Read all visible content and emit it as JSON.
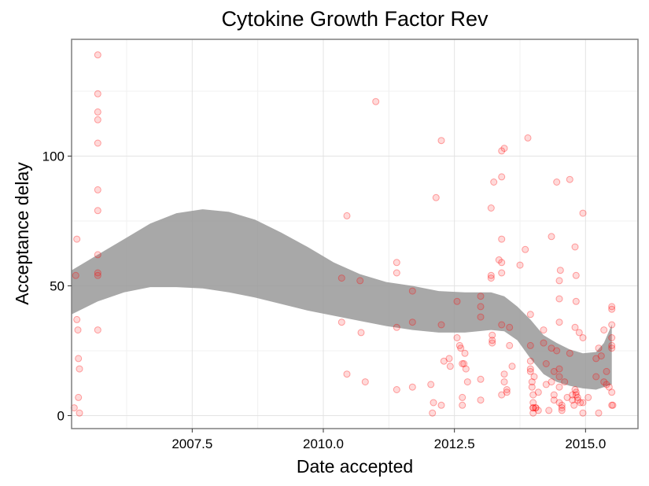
{
  "chart_data": {
    "type": "scatter",
    "title": "Cytokine Growth Factor Rev",
    "xlabel": "Date accepted",
    "ylabel": "Acceptance delay",
    "xlim": [
      2005.2,
      2016.0
    ],
    "ylim": [
      -5,
      145
    ],
    "xticks": [
      2007.5,
      2010.0,
      2012.5,
      2015.0
    ],
    "xtick_labels": [
      "2007.5",
      "2010.0",
      "2012.5",
      "2015.0"
    ],
    "yticks": [
      0,
      50,
      100
    ],
    "ytick_labels": [
      "0",
      "50",
      "100"
    ],
    "grid": true,
    "point_color": "#ff0000",
    "band_color": "#999999",
    "points": [
      [
        2005.25,
        3
      ],
      [
        2005.28,
        54
      ],
      [
        2005.3,
        68
      ],
      [
        2005.3,
        37
      ],
      [
        2005.32,
        33
      ],
      [
        2005.33,
        22
      ],
      [
        2005.33,
        7
      ],
      [
        2005.35,
        1
      ],
      [
        2005.35,
        18
      ],
      [
        2005.7,
        139
      ],
      [
        2005.7,
        124
      ],
      [
        2005.7,
        117
      ],
      [
        2005.7,
        114
      ],
      [
        2005.7,
        105
      ],
      [
        2005.7,
        87
      ],
      [
        2005.7,
        79
      ],
      [
        2005.7,
        62
      ],
      [
        2005.7,
        55
      ],
      [
        2005.7,
        54
      ],
      [
        2005.7,
        33
      ],
      [
        2010.35,
        53
      ],
      [
        2010.35,
        36
      ],
      [
        2010.45,
        77
      ],
      [
        2010.45,
        16
      ],
      [
        2010.7,
        52
      ],
      [
        2010.72,
        32
      ],
      [
        2010.8,
        13
      ],
      [
        2011.0,
        121
      ],
      [
        2011.4,
        59
      ],
      [
        2011.4,
        55
      ],
      [
        2011.4,
        34
      ],
      [
        2011.4,
        10
      ],
      [
        2011.7,
        48
      ],
      [
        2011.7,
        36
      ],
      [
        2011.7,
        11
      ],
      [
        2012.05,
        12
      ],
      [
        2012.08,
        1
      ],
      [
        2012.1,
        5
      ],
      [
        2012.15,
        84
      ],
      [
        2012.25,
        106
      ],
      [
        2012.25,
        35
      ],
      [
        2012.3,
        21
      ],
      [
        2012.25,
        4
      ],
      [
        2012.4,
        22
      ],
      [
        2012.42,
        19
      ],
      [
        2012.55,
        44
      ],
      [
        2012.55,
        30
      ],
      [
        2012.6,
        27
      ],
      [
        2012.62,
        26
      ],
      [
        2012.65,
        20
      ],
      [
        2012.68,
        20
      ],
      [
        2012.7,
        24
      ],
      [
        2012.72,
        18
      ],
      [
        2012.65,
        7
      ],
      [
        2012.65,
        4
      ],
      [
        2012.75,
        13
      ],
      [
        2013.0,
        46
      ],
      [
        2013.0,
        42
      ],
      [
        2013.0,
        38
      ],
      [
        2013.0,
        14
      ],
      [
        2013.0,
        6
      ],
      [
        2013.2,
        80
      ],
      [
        2013.2,
        54
      ],
      [
        2013.2,
        53
      ],
      [
        2013.22,
        31
      ],
      [
        2013.22,
        29
      ],
      [
        2013.22,
        28
      ],
      [
        2013.25,
        90
      ],
      [
        2013.35,
        60
      ],
      [
        2013.4,
        59
      ],
      [
        2013.4,
        55
      ],
      [
        2013.4,
        68
      ],
      [
        2013.4,
        92
      ],
      [
        2013.4,
        102
      ],
      [
        2013.45,
        103
      ],
      [
        2013.4,
        35
      ],
      [
        2013.45,
        16
      ],
      [
        2013.45,
        13
      ],
      [
        2013.4,
        8
      ],
      [
        2013.5,
        10
      ],
      [
        2013.5,
        9
      ],
      [
        2013.55,
        34
      ],
      [
        2013.55,
        27
      ],
      [
        2013.6,
        19
      ],
      [
        2013.75,
        58
      ],
      [
        2013.85,
        64
      ],
      [
        2013.9,
        107
      ],
      [
        2013.95,
        39
      ],
      [
        2013.95,
        27
      ],
      [
        2013.95,
        21
      ],
      [
        2013.95,
        18
      ],
      [
        2013.95,
        17
      ],
      [
        2013.98,
        13
      ],
      [
        2013.98,
        11
      ],
      [
        2014.0,
        8
      ],
      [
        2014.0,
        5
      ],
      [
        2014.0,
        3
      ],
      [
        2014.0,
        3
      ],
      [
        2014.0,
        1
      ],
      [
        2014.02,
        15
      ],
      [
        2014.05,
        3
      ],
      [
        2014.05,
        3
      ],
      [
        2014.1,
        9
      ],
      [
        2014.1,
        2
      ],
      [
        2014.2,
        33
      ],
      [
        2014.2,
        28
      ],
      [
        2014.25,
        20
      ],
      [
        2014.25,
        12
      ],
      [
        2014.3,
        2
      ],
      [
        2014.35,
        69
      ],
      [
        2014.35,
        26
      ],
      [
        2014.35,
        13
      ],
      [
        2014.4,
        17
      ],
      [
        2014.4,
        8
      ],
      [
        2014.4,
        6
      ],
      [
        2014.45,
        90
      ],
      [
        2014.45,
        25
      ],
      [
        2014.5,
        52
      ],
      [
        2014.5,
        45
      ],
      [
        2014.52,
        56
      ],
      [
        2014.5,
        36
      ],
      [
        2014.5,
        18
      ],
      [
        2014.5,
        15
      ],
      [
        2014.5,
        11
      ],
      [
        2014.5,
        5
      ],
      [
        2014.55,
        4
      ],
      [
        2014.55,
        3
      ],
      [
        2014.55,
        2
      ],
      [
        2014.6,
        13
      ],
      [
        2014.65,
        7
      ],
      [
        2014.7,
        91
      ],
      [
        2014.7,
        24
      ],
      [
        2014.75,
        8
      ],
      [
        2014.75,
        6
      ],
      [
        2014.78,
        4
      ],
      [
        2014.8,
        65
      ],
      [
        2014.82,
        54
      ],
      [
        2014.82,
        44
      ],
      [
        2014.8,
        34
      ],
      [
        2014.8,
        10
      ],
      [
        2014.82,
        9
      ],
      [
        2014.82,
        8
      ],
      [
        2014.85,
        7
      ],
      [
        2014.85,
        6
      ],
      [
        2014.88,
        32
      ],
      [
        2014.9,
        5
      ],
      [
        2014.95,
        30
      ],
      [
        2014.95,
        78
      ],
      [
        2014.95,
        5
      ],
      [
        2014.95,
        1
      ],
      [
        2015.05,
        7
      ],
      [
        2015.2,
        22
      ],
      [
        2015.2,
        15
      ],
      [
        2015.25,
        26
      ],
      [
        2015.25,
        1
      ],
      [
        2015.3,
        23
      ],
      [
        2015.35,
        13
      ],
      [
        2015.35,
        33
      ],
      [
        2015.4,
        17
      ],
      [
        2015.4,
        12
      ],
      [
        2015.45,
        11
      ],
      [
        2015.5,
        42
      ],
      [
        2015.5,
        41
      ],
      [
        2015.5,
        35
      ],
      [
        2015.5,
        30
      ],
      [
        2015.5,
        27
      ],
      [
        2015.5,
        26
      ],
      [
        2015.5,
        9
      ],
      [
        2015.5,
        4
      ],
      [
        2015.52,
        4
      ]
    ],
    "smooth_band": {
      "x": [
        2005.2,
        2005.7,
        2006.2,
        2006.7,
        2007.2,
        2007.7,
        2008.2,
        2008.7,
        2009.2,
        2009.7,
        2010.2,
        2010.7,
        2011.2,
        2011.7,
        2012.2,
        2012.7,
        2013.2,
        2013.45,
        2013.7,
        2013.95,
        2014.2,
        2014.45,
        2014.7,
        2014.95,
        2015.2,
        2015.35,
        2015.5
      ],
      "upper": [
        56,
        62,
        68,
        74,
        78,
        79.5,
        78.5,
        75.5,
        70.5,
        65,
        59,
        54.5,
        51.5,
        50,
        48,
        47.5,
        47.5,
        46,
        42,
        37,
        31,
        28,
        25.5,
        24,
        24.5,
        28,
        35
      ],
      "lower": [
        39,
        44,
        47.5,
        49.5,
        49.5,
        49,
        47.5,
        45.5,
        43,
        40.5,
        38.5,
        36.5,
        34.5,
        33,
        32,
        32,
        33,
        32.5,
        29,
        22,
        16,
        13,
        11.5,
        10.5,
        10,
        11,
        12
      ]
    }
  }
}
